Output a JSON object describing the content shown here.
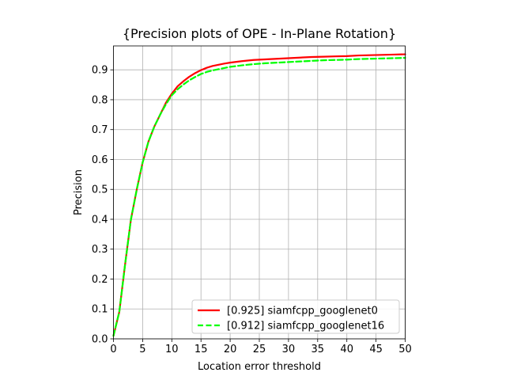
{
  "chart_data": {
    "type": "line",
    "title": "{Precision plots of OPE - In-Plane Rotation}",
    "xlabel": "Location error threshold",
    "ylabel": "Precision",
    "xlim": [
      0,
      50
    ],
    "ylim": [
      0,
      0.98
    ],
    "xticks": [
      "0",
      "5",
      "10",
      "15",
      "20",
      "25",
      "30",
      "35",
      "40",
      "45",
      "50"
    ],
    "yticks": [
      "0.0",
      "0.1",
      "0.2",
      "0.3",
      "0.4",
      "0.5",
      "0.6",
      "0.7",
      "0.8",
      "0.9"
    ],
    "grid": true,
    "legend_position": "lower-right",
    "x": [
      0,
      1,
      2,
      3,
      4,
      5,
      6,
      7,
      8,
      9,
      10,
      11,
      12,
      13,
      14,
      15,
      16,
      17,
      18,
      19,
      20,
      22,
      24,
      26,
      28,
      30,
      32,
      34,
      36,
      38,
      40,
      42,
      44,
      46,
      48,
      50
    ],
    "series": [
      {
        "name": "[0.925] siamfcpp_googlenet0",
        "color": "#ff0000",
        "dash": "solid",
        "values": [
          0.01,
          0.09,
          0.25,
          0.4,
          0.5,
          0.59,
          0.66,
          0.71,
          0.75,
          0.79,
          0.82,
          0.845,
          0.862,
          0.877,
          0.889,
          0.899,
          0.907,
          0.913,
          0.917,
          0.921,
          0.924,
          0.929,
          0.933,
          0.935,
          0.937,
          0.939,
          0.941,
          0.943,
          0.944,
          0.945,
          0.946,
          0.948,
          0.949,
          0.95,
          0.951,
          0.952
        ]
      },
      {
        "name": "[0.912] siamfcpp_googlenet16",
        "color": "#00ff00",
        "dash": "dashed",
        "values": [
          0.01,
          0.09,
          0.25,
          0.4,
          0.5,
          0.59,
          0.66,
          0.71,
          0.75,
          0.785,
          0.815,
          0.835,
          0.851,
          0.865,
          0.876,
          0.886,
          0.893,
          0.898,
          0.902,
          0.906,
          0.91,
          0.915,
          0.919,
          0.922,
          0.924,
          0.926,
          0.928,
          0.93,
          0.932,
          0.933,
          0.934,
          0.936,
          0.937,
          0.938,
          0.939,
          0.94
        ]
      }
    ]
  }
}
